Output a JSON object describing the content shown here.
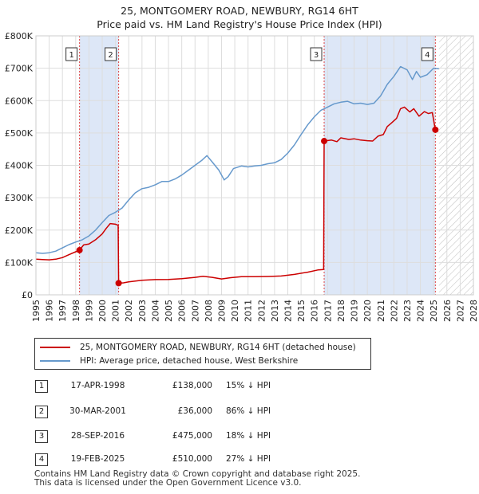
{
  "title": "25, MONTGOMERY ROAD, NEWBURY, RG14 6HT",
  "subtitle": "Price paid vs. HM Land Registry's House Price Index (HPI)",
  "colors": {
    "property": "#cc0000",
    "hpi": "#6699cc",
    "shade": "#dde7f7",
    "grid": "#dddddd",
    "marker_line": "#dd4444"
  },
  "chart_data": {
    "type": "line",
    "x_ticks": [
      "1995",
      "1996",
      "1997",
      "1998",
      "1999",
      "2000",
      "2001",
      "2002",
      "2003",
      "2004",
      "2005",
      "2006",
      "2007",
      "2008",
      "2009",
      "2010",
      "2011",
      "2012",
      "2013",
      "2014",
      "2015",
      "2016",
      "2017",
      "2018",
      "2019",
      "2020",
      "2021",
      "2022",
      "2023",
      "2024",
      "2025",
      "2026",
      "2027",
      "2028"
    ],
    "y_ticks": [
      "£0",
      "£100K",
      "£200K",
      "£300K",
      "£400K",
      "£500K",
      "£600K",
      "£700K",
      "£800K"
    ],
    "xlim": [
      1995,
      2028
    ],
    "ylim": [
      0,
      800000
    ],
    "future_hatch_from": 2025.4,
    "shaded_periods": [
      [
        1998.29,
        2001.24
      ],
      [
        2016.74,
        2025.13
      ]
    ],
    "series": [
      {
        "name": "25, MONTGOMERY ROAD, NEWBURY, RG14 6HT (detached house)",
        "points": [
          [
            1995.0,
            110000
          ],
          [
            1995.5,
            109000
          ],
          [
            1996.0,
            108000
          ],
          [
            1996.5,
            110000
          ],
          [
            1997.0,
            115000
          ],
          [
            1997.5,
            124000
          ],
          [
            1998.0,
            133000
          ],
          [
            1998.29,
            138000
          ],
          [
            1998.6,
            154000
          ],
          [
            1999.0,
            157000
          ],
          [
            1999.5,
            170000
          ],
          [
            2000.0,
            188000
          ],
          [
            2000.3,
            205000
          ],
          [
            2000.6,
            220000
          ],
          [
            2001.0,
            218000
          ],
          [
            2001.2,
            215000
          ],
          [
            2001.24,
            36000
          ],
          [
            2001.6,
            37000
          ],
          [
            2002.0,
            40000
          ],
          [
            2003.0,
            45000
          ],
          [
            2004.0,
            47000
          ],
          [
            2005.0,
            47500
          ],
          [
            2006.0,
            50000
          ],
          [
            2007.0,
            54000
          ],
          [
            2007.6,
            57000
          ],
          [
            2008.3,
            54000
          ],
          [
            2009.0,
            49000
          ],
          [
            2009.7,
            53000
          ],
          [
            2010.5,
            56000
          ],
          [
            2011.5,
            56000
          ],
          [
            2012.5,
            56500
          ],
          [
            2013.5,
            58000
          ],
          [
            2014.5,
            63000
          ],
          [
            2015.5,
            70000
          ],
          [
            2016.3,
            77000
          ],
          [
            2016.7,
            78000
          ],
          [
            2016.74,
            475000
          ],
          [
            2017.3,
            478000
          ],
          [
            2017.7,
            473000
          ],
          [
            2018.0,
            485000
          ],
          [
            2018.6,
            480000
          ],
          [
            2019.0,
            482000
          ],
          [
            2019.5,
            478000
          ],
          [
            2020.0,
            476000
          ],
          [
            2020.4,
            475000
          ],
          [
            2020.8,
            490000
          ],
          [
            2021.2,
            495000
          ],
          [
            2021.5,
            520000
          ],
          [
            2021.8,
            530000
          ],
          [
            2022.2,
            545000
          ],
          [
            2022.5,
            575000
          ],
          [
            2022.8,
            580000
          ],
          [
            2023.2,
            565000
          ],
          [
            2023.5,
            575000
          ],
          [
            2023.9,
            552000
          ],
          [
            2024.3,
            566000
          ],
          [
            2024.6,
            560000
          ],
          [
            2024.9,
            563000
          ],
          [
            2025.13,
            510000
          ],
          [
            2025.35,
            505000
          ]
        ]
      },
      {
        "name": "HPI: Average price, detached house, West Berkshire",
        "points": [
          [
            1995.0,
            130000
          ],
          [
            1995.5,
            128000
          ],
          [
            1996.0,
            130000
          ],
          [
            1996.5,
            135000
          ],
          [
            1997.0,
            145000
          ],
          [
            1997.5,
            155000
          ],
          [
            1998.0,
            163000
          ],
          [
            1998.5,
            170000
          ],
          [
            1999.0,
            182000
          ],
          [
            1999.5,
            200000
          ],
          [
            2000.0,
            223000
          ],
          [
            2000.5,
            245000
          ],
          [
            2001.0,
            255000
          ],
          [
            2001.5,
            268000
          ],
          [
            2002.0,
            293000
          ],
          [
            2002.5,
            315000
          ],
          [
            2003.0,
            328000
          ],
          [
            2003.5,
            332000
          ],
          [
            2004.0,
            340000
          ],
          [
            2004.5,
            350000
          ],
          [
            2005.0,
            350000
          ],
          [
            2005.5,
            358000
          ],
          [
            2006.0,
            370000
          ],
          [
            2006.5,
            385000
          ],
          [
            2007.0,
            400000
          ],
          [
            2007.5,
            415000
          ],
          [
            2007.9,
            430000
          ],
          [
            2008.3,
            410000
          ],
          [
            2008.8,
            385000
          ],
          [
            2009.2,
            355000
          ],
          [
            2009.5,
            365000
          ],
          [
            2009.9,
            390000
          ],
          [
            2010.5,
            398000
          ],
          [
            2011.0,
            395000
          ],
          [
            2011.5,
            398000
          ],
          [
            2012.0,
            400000
          ],
          [
            2012.5,
            405000
          ],
          [
            2013.0,
            408000
          ],
          [
            2013.5,
            418000
          ],
          [
            2014.0,
            438000
          ],
          [
            2014.5,
            463000
          ],
          [
            2015.0,
            495000
          ],
          [
            2015.5,
            525000
          ],
          [
            2016.0,
            550000
          ],
          [
            2016.5,
            570000
          ],
          [
            2017.0,
            580000
          ],
          [
            2017.5,
            590000
          ],
          [
            2018.0,
            595000
          ],
          [
            2018.5,
            598000
          ],
          [
            2019.0,
            590000
          ],
          [
            2019.5,
            592000
          ],
          [
            2020.0,
            588000
          ],
          [
            2020.5,
            592000
          ],
          [
            2021.0,
            615000
          ],
          [
            2021.5,
            650000
          ],
          [
            2022.0,
            675000
          ],
          [
            2022.5,
            705000
          ],
          [
            2023.0,
            695000
          ],
          [
            2023.4,
            665000
          ],
          [
            2023.7,
            690000
          ],
          [
            2024.0,
            672000
          ],
          [
            2024.5,
            680000
          ],
          [
            2025.0,
            700000
          ],
          [
            2025.4,
            698000
          ]
        ]
      }
    ],
    "sales": [
      {
        "label": "1",
        "x": 1998.29,
        "price": 138000
      },
      {
        "label": "2",
        "x": 2001.24,
        "price": 36000
      },
      {
        "label": "3",
        "x": 2016.74,
        "price": 475000
      },
      {
        "label": "4",
        "x": 2025.13,
        "price": 510000
      }
    ]
  },
  "legend": {
    "property": "25, MONTGOMERY ROAD, NEWBURY, RG14 6HT (detached house)",
    "hpi": "HPI: Average price, detached house, West Berkshire"
  },
  "transactions": [
    {
      "num": "1",
      "date": "17-APR-1998",
      "price": "£138,000",
      "hpi": "15% ↓ HPI"
    },
    {
      "num": "2",
      "date": "30-MAR-2001",
      "price": "£36,000",
      "hpi": "86% ↓ HPI"
    },
    {
      "num": "3",
      "date": "28-SEP-2016",
      "price": "£475,000",
      "hpi": "18% ↓ HPI"
    },
    {
      "num": "4",
      "date": "19-FEB-2025",
      "price": "£510,000",
      "hpi": "27% ↓ HPI"
    }
  ],
  "footer": {
    "line1": "Contains HM Land Registry data © Crown copyright and database right 2025.",
    "line2": "This data is licensed under the Open Government Licence v3.0."
  }
}
